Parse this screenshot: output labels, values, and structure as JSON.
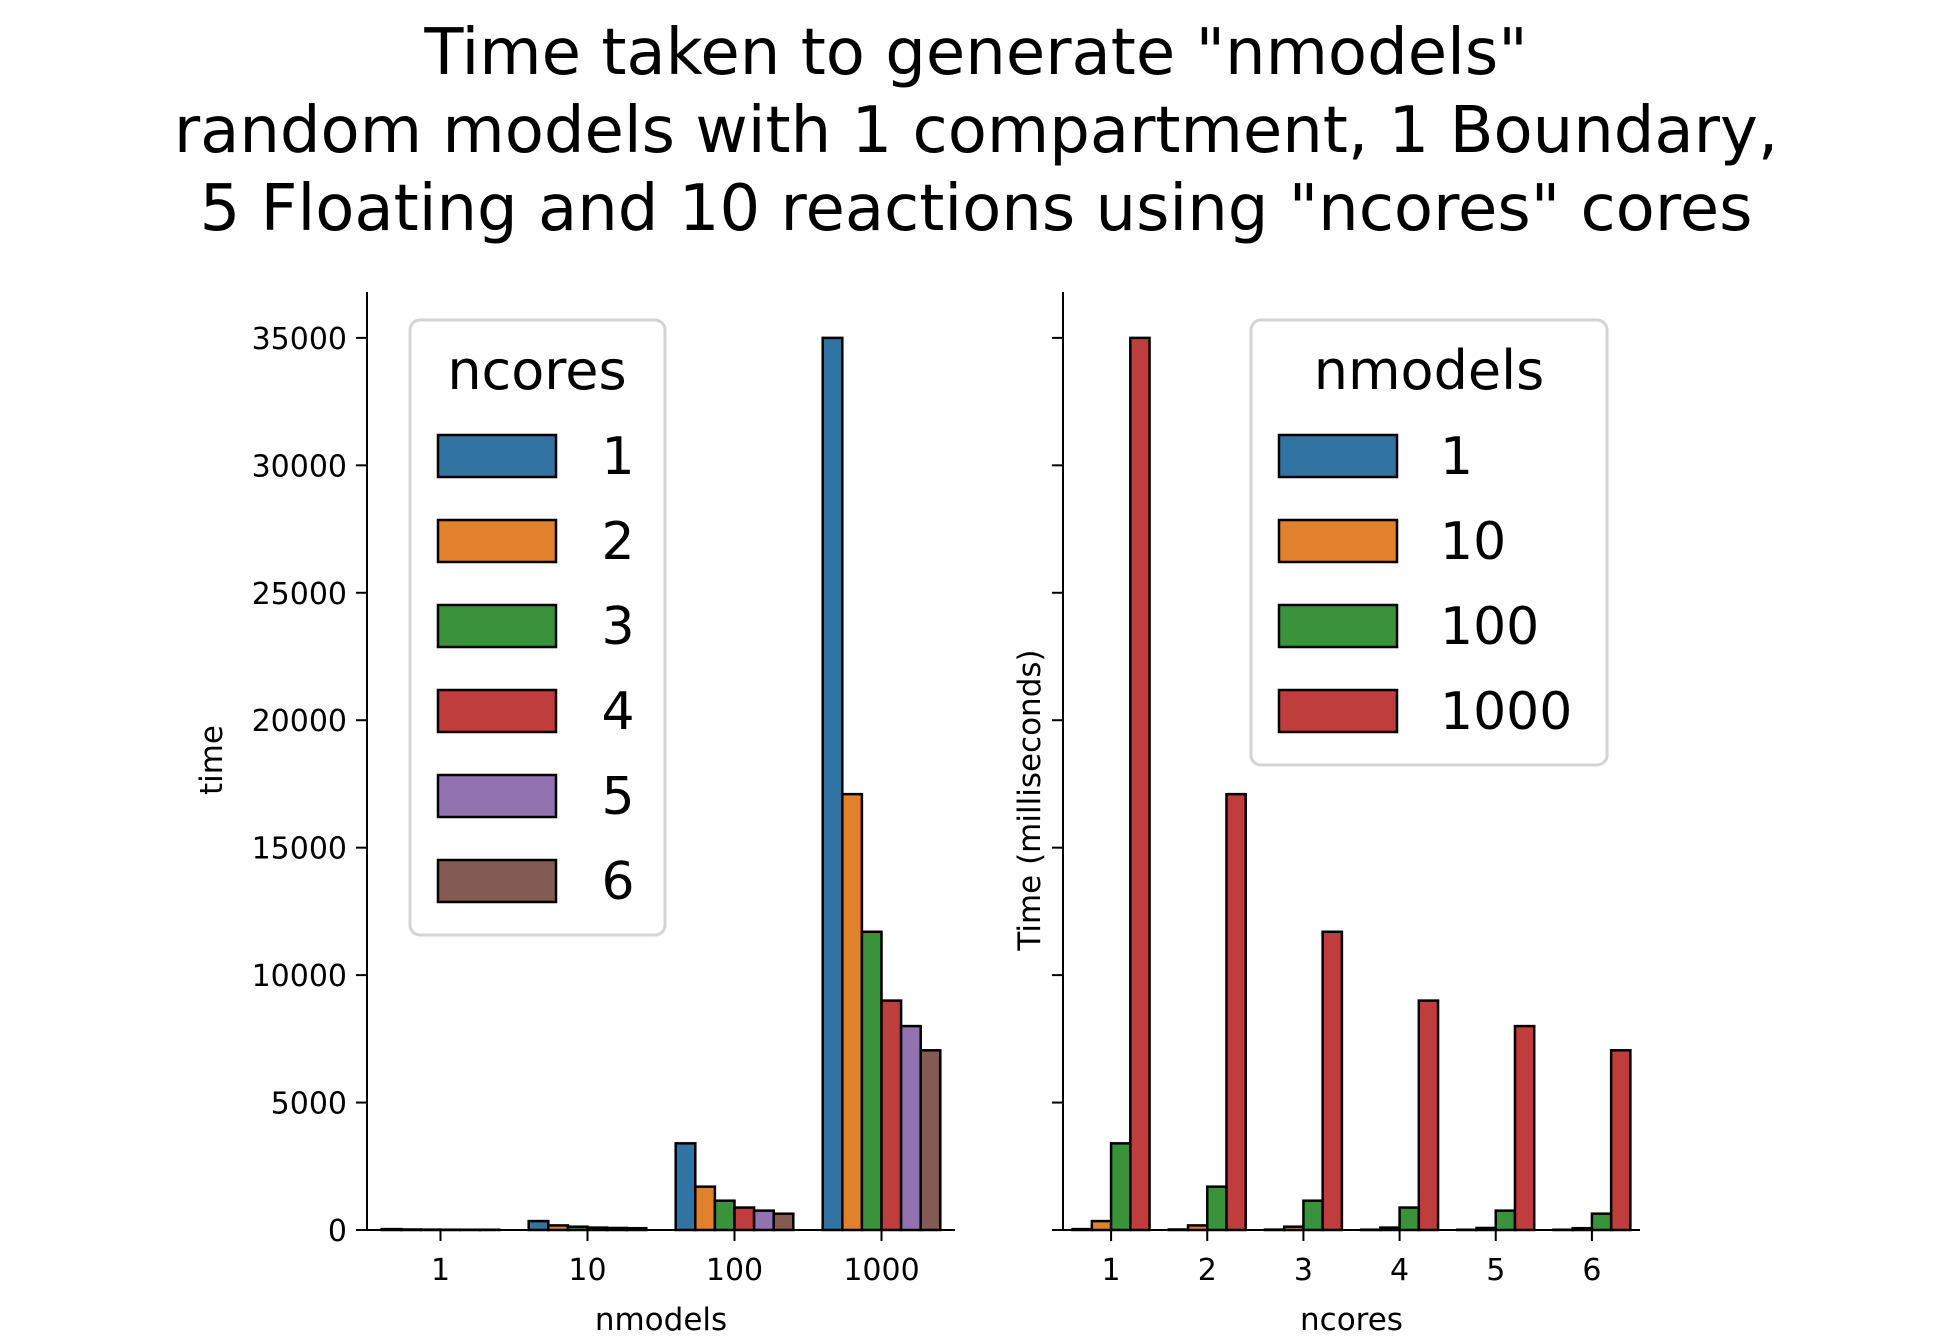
{
  "title_lines": [
    "Time taken to generate \"nmodels\"",
    "random models with 1 compartment, 1 Boundary,",
    "5 Floating and 10 reactions using \"ncores\" cores"
  ],
  "colors": {
    "c1": "#3274a1",
    "c2": "#e1812c",
    "c3": "#3a923a",
    "c4": "#c03d3e",
    "c5": "#9372b2",
    "c6": "#845b53"
  },
  "chart_data": [
    {
      "type": "bar",
      "xlabel": "nmodels",
      "ylabel": "time",
      "categories": [
        "1",
        "10",
        "100",
        "1000"
      ],
      "ylim": [
        0,
        36800
      ],
      "yticks": [
        0,
        5000,
        10000,
        15000,
        20000,
        25000,
        30000,
        35000
      ],
      "legend": {
        "title": "ncores",
        "placement": "top-left"
      },
      "series": [
        {
          "name": "1",
          "color": "#3274a1",
          "values": [
            35,
            350,
            3400,
            35000
          ]
        },
        {
          "name": "2",
          "color": "#e1812c",
          "values": [
            20,
            180,
            1700,
            17100
          ]
        },
        {
          "name": "3",
          "color": "#3a923a",
          "values": [
            15,
            130,
            1150,
            11700
          ]
        },
        {
          "name": "4",
          "color": "#c03d3e",
          "values": [
            12,
            95,
            880,
            9000
          ]
        },
        {
          "name": "5",
          "color": "#9372b2",
          "values": [
            10,
            80,
            760,
            8000
          ]
        },
        {
          "name": "6",
          "color": "#845b53",
          "values": [
            10,
            70,
            640,
            7050
          ]
        }
      ]
    },
    {
      "type": "bar",
      "xlabel": "ncores",
      "ylabel": "Time (milliseconds)",
      "categories": [
        "1",
        "2",
        "3",
        "4",
        "5",
        "6"
      ],
      "ylim": [
        0,
        36800
      ],
      "yticks": [
        0,
        5000,
        10000,
        15000,
        20000,
        25000,
        30000,
        35000
      ],
      "shared_y_ticklabels_hidden": true,
      "legend": {
        "title": "nmodels",
        "placement": "top-right"
      },
      "series": [
        {
          "name": "1",
          "color": "#3274a1",
          "values": [
            35,
            20,
            15,
            12,
            10,
            10
          ]
        },
        {
          "name": "10",
          "color": "#e1812c",
          "values": [
            350,
            180,
            130,
            95,
            80,
            70
          ]
        },
        {
          "name": "100",
          "color": "#3a923a",
          "values": [
            3400,
            1700,
            1150,
            880,
            760,
            640
          ]
        },
        {
          "name": "1000",
          "color": "#c03d3e",
          "values": [
            35000,
            17100,
            11700,
            9000,
            8000,
            7050
          ]
        }
      ]
    }
  ]
}
